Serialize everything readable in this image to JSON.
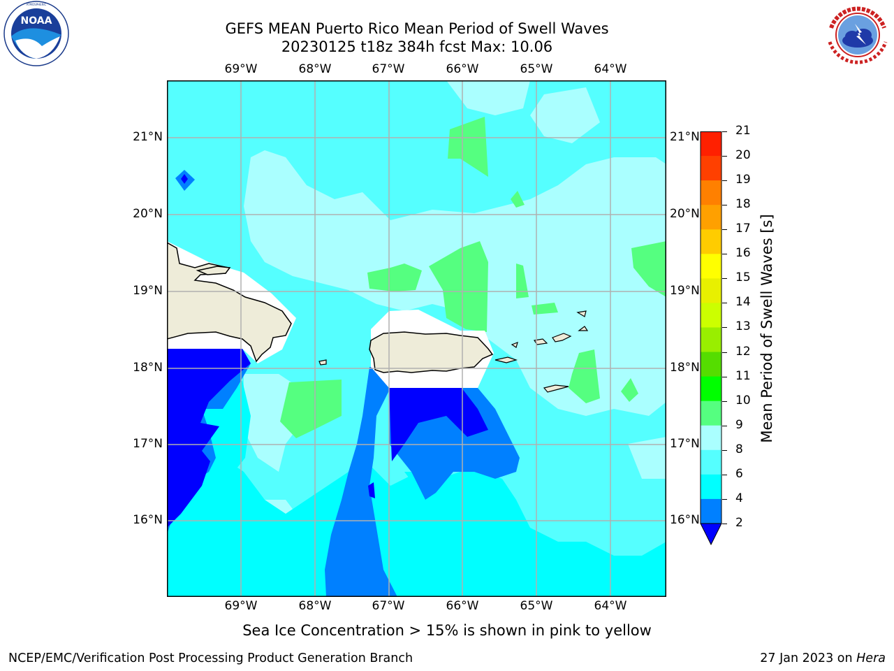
{
  "title_line1": "GEFS MEAN Puerto Rico Mean Period of Swell Waves",
  "title_line2": "20230125 t18z 384h fcst   Max: 10.06",
  "lon_labels": [
    "69°W",
    "68°W",
    "67°W",
    "66°W",
    "65°W",
    "64°W"
  ],
  "lat_labels": [
    "21°N",
    "20°N",
    "19°N",
    "18°N",
    "17°N",
    "16°N"
  ],
  "colorbar": {
    "label": "Mean Period of Swell Waves [s]",
    "ticks": [
      "2",
      "4",
      "6",
      "8",
      "9",
      "10",
      "11",
      "12",
      "13",
      "14",
      "15",
      "16",
      "17",
      "18",
      "19",
      "20",
      "21"
    ],
    "colors": [
      "#0000ff",
      "#0080ff",
      "#00ffff",
      "#55ffff",
      "#aaffff",
      "#55ff80",
      "#00ff00",
      "#55dd00",
      "#99ee00",
      "#ccff00",
      "#e8f000",
      "#ffff00",
      "#ffcc00",
      "#ffa000",
      "#ff8000",
      "#ff4000",
      "#ff2000",
      "#ff0000"
    ]
  },
  "colors": {
    "land": "#eeecd9",
    "grid": "#b0b0b0",
    "c2": "#0000ff",
    "c4": "#0080ff",
    "c6": "#00ffff",
    "c8": "#55ffff",
    "c9": "#aaffff",
    "c10": "#55ff80"
  },
  "note": "Sea Ice Concentration > 15% is shown in pink to yellow",
  "footer_left": "NCEP/EMC/Verification Post Processing Product Generation Branch",
  "footer_date": "27 Jan 2023 on ",
  "footer_machine": "Hera",
  "logos": {
    "noaa": {
      "text": "NOAA",
      "ring_text": "NATIONAL OCEANIC AND ATMOSPHERIC ADMINISTRATION · U.S. DEPARTMENT OF COMMERCE"
    },
    "nws": {
      "ring_text": "NATIONAL WEATHER SERVICE"
    }
  }
}
